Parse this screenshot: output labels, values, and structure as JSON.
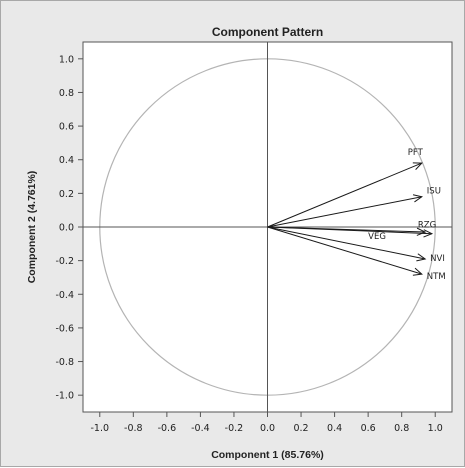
{
  "chart_data": {
    "type": "scatter",
    "title": "Component Pattern",
    "xlabel": "Component 1 (85.76%)",
    "ylabel": "Component 2 (4.761%)",
    "xlim": [
      -1.1,
      1.1
    ],
    "ylim": [
      -1.1,
      1.1
    ],
    "xticks": [
      "-1.0",
      "-0.8",
      "-0.6",
      "-0.4",
      "-0.2",
      "0.0",
      "0.2",
      "0.4",
      "0.6",
      "0.8",
      "1.0"
    ],
    "yticks": [
      "1.0",
      "0.8",
      "0.6",
      "0.4",
      "0.2",
      "0.0",
      "-0.2",
      "-0.4",
      "-0.6",
      "-0.8",
      "-1.0"
    ],
    "unit_circle": true,
    "reference_lines": {
      "x": 0.0,
      "y": 0.0
    },
    "grid": false,
    "colors": {
      "frame": "#e9e9e9",
      "plot_bg": "#ffffff",
      "circle": "#b4b4b4",
      "vectors": "#1a1a1a"
    },
    "vectors": [
      {
        "label": "PFT",
        "x": 0.92,
        "y": 0.38
      },
      {
        "label": "ISU",
        "x": 0.92,
        "y": 0.18
      },
      {
        "label": "RZG",
        "x": 0.98,
        "y": -0.04
      },
      {
        "label": "VEG",
        "x": 0.94,
        "y": -0.03
      },
      {
        "label": "NVI",
        "x": 0.94,
        "y": -0.19
      },
      {
        "label": "NTM",
        "x": 0.92,
        "y": -0.28
      }
    ]
  }
}
